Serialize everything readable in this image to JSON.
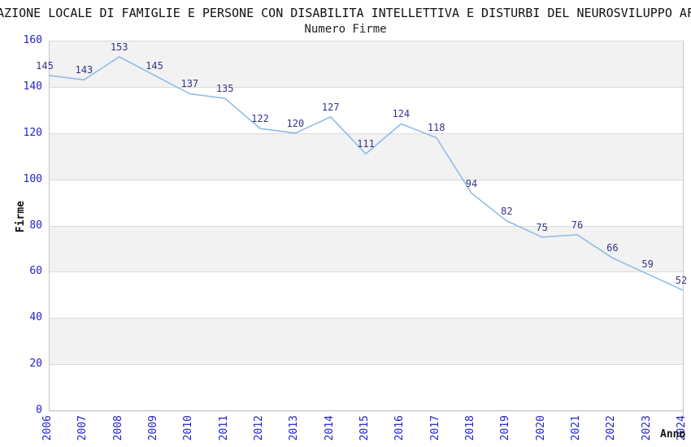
{
  "chart_data": {
    "type": "line",
    "title": "AZIONE LOCALE DI FAMIGLIE E PERSONE CON DISABILITA INTELLETTIVA E DISTURBI DEL NEUROSVILUPPO AF",
    "subtitle": "Numero Firme",
    "xlabel": "Anno",
    "ylabel": "Firme",
    "categories": [
      "2006",
      "2007",
      "2008",
      "2009",
      "2010",
      "2011",
      "2012",
      "2013",
      "2014",
      "2015",
      "2016",
      "2017",
      "2018",
      "2019",
      "2020",
      "2021",
      "2022",
      "2023",
      "2024"
    ],
    "values": [
      145,
      143,
      153,
      145,
      137,
      135,
      122,
      120,
      127,
      111,
      124,
      118,
      94,
      82,
      75,
      76,
      66,
      59,
      52
    ],
    "ylim": [
      0,
      160
    ],
    "ytick_step": 20,
    "yticks": [
      0,
      20,
      40,
      60,
      80,
      100,
      120,
      140,
      160
    ],
    "grid": true,
    "legend_position": "none",
    "data_labels_shown": true,
    "colors": {
      "line": "#8cb9ea",
      "tick_label": "#2323cb",
      "data_label": "#343488",
      "band": "#f2f2f2",
      "gridline": "#dadada",
      "title_text": "#111111"
    }
  }
}
